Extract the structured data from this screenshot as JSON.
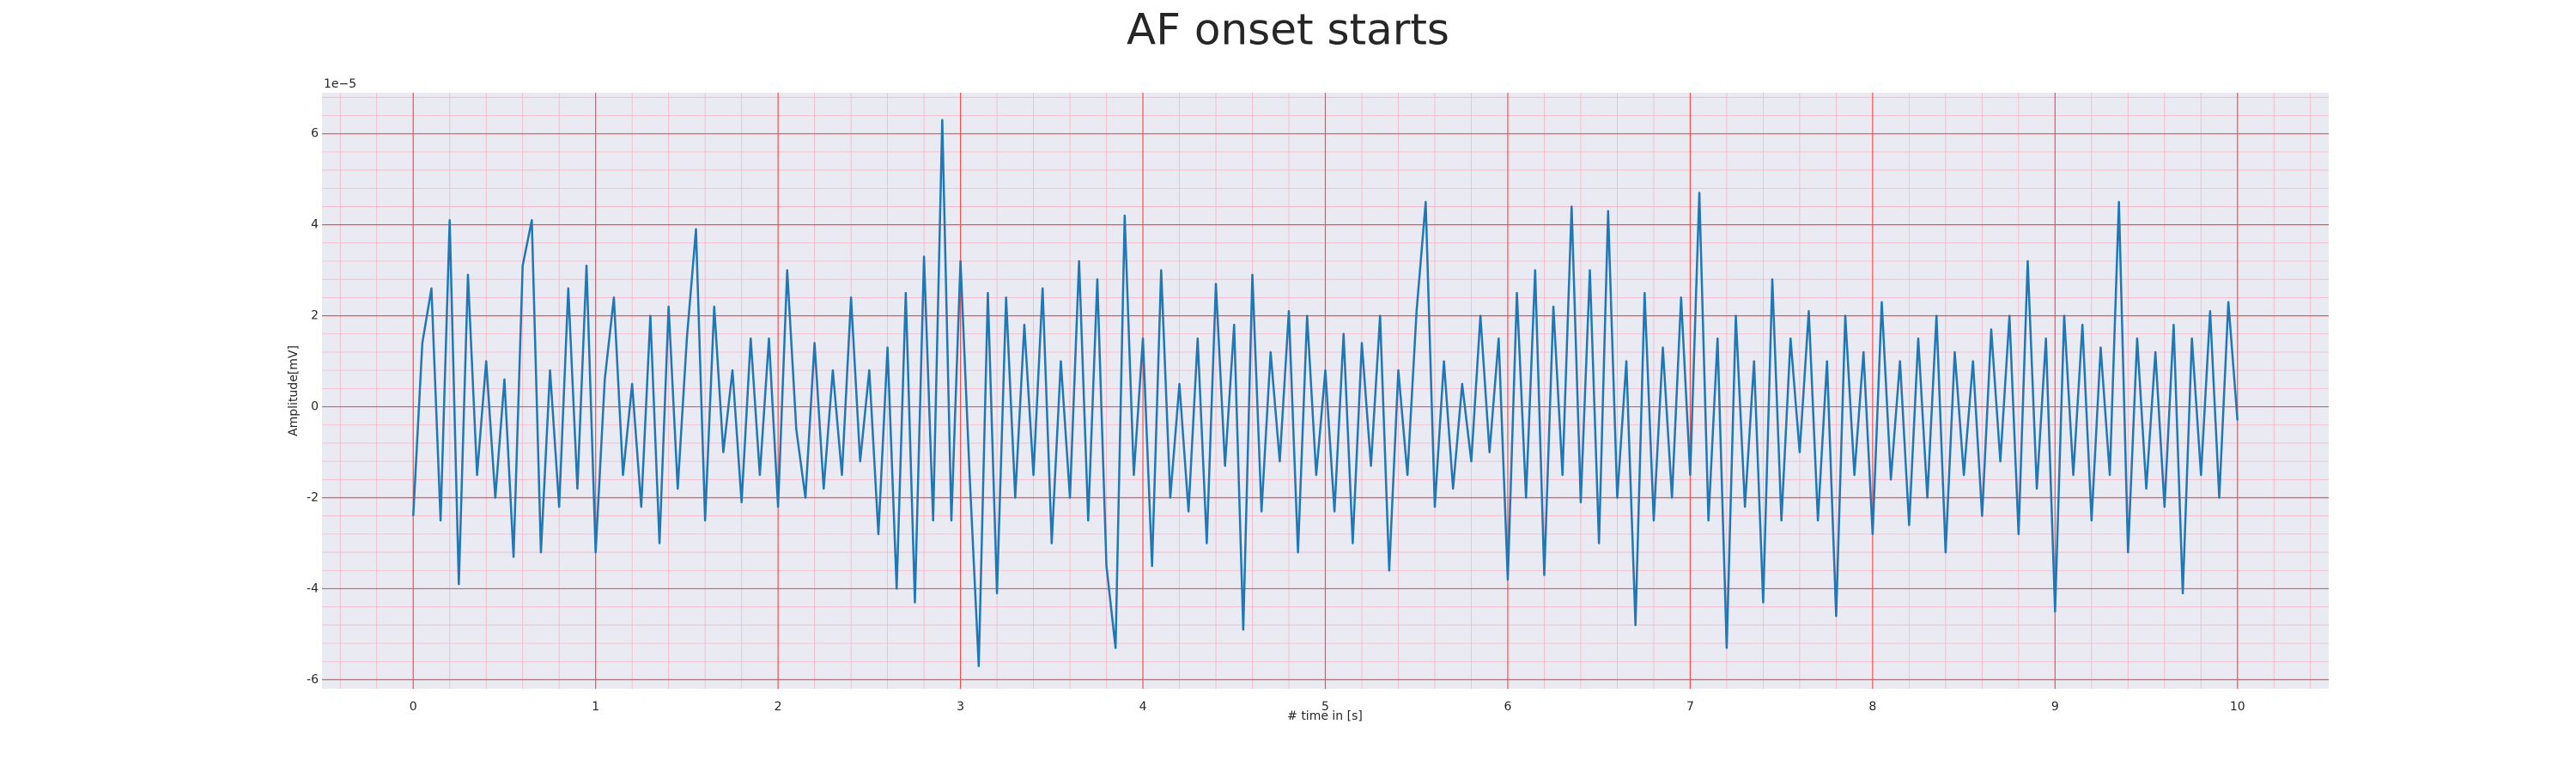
{
  "chart_data": {
    "type": "line",
    "title": "AF onset starts",
    "xlabel": "# time in [s]",
    "ylabel": "Amplitude[mV]",
    "y_offset_label": "1e−5",
    "x": [
      0,
      0.05,
      0.1,
      0.15,
      0.2,
      0.25,
      0.3,
      0.35,
      0.4,
      0.45,
      0.5,
      0.55,
      0.6,
      0.65,
      0.7,
      0.75,
      0.8,
      0.85,
      0.9,
      0.95,
      1,
      1.05,
      1.1,
      1.15,
      1.2,
      1.25,
      1.3,
      1.35,
      1.4,
      1.45,
      1.5,
      1.55,
      1.6,
      1.65,
      1.7,
      1.75,
      1.8,
      1.85,
      1.9,
      1.95,
      2,
      2.05,
      2.1,
      2.15,
      2.2,
      2.25,
      2.3,
      2.35,
      2.4,
      2.45,
      2.5,
      2.55,
      2.6,
      2.65,
      2.7,
      2.75,
      2.8,
      2.85,
      2.9,
      2.95,
      3,
      3.05,
      3.1,
      3.15,
      3.2,
      3.25,
      3.3,
      3.35,
      3.4,
      3.45,
      3.5,
      3.55,
      3.6,
      3.65,
      3.7,
      3.75,
      3.8,
      3.85,
      3.9,
      3.95,
      4,
      4.05,
      4.1,
      4.15,
      4.2,
      4.25,
      4.3,
      4.35,
      4.4,
      4.45,
      4.5,
      4.55,
      4.6,
      4.65,
      4.7,
      4.75,
      4.8,
      4.85,
      4.9,
      4.95,
      5,
      5.05,
      5.1,
      5.15,
      5.2,
      5.25,
      5.3,
      5.35,
      5.4,
      5.45,
      5.5,
      5.55,
      5.6,
      5.65,
      5.7,
      5.75,
      5.8,
      5.85,
      5.9,
      5.95,
      6,
      6.05,
      6.1,
      6.15,
      6.2,
      6.25,
      6.3,
      6.35,
      6.4,
      6.45,
      6.5,
      6.55,
      6.6,
      6.65,
      6.7,
      6.75,
      6.8,
      6.85,
      6.9,
      6.95,
      7,
      7.05,
      7.1,
      7.15,
      7.2,
      7.25,
      7.3,
      7.35,
      7.4,
      7.45,
      7.5,
      7.55,
      7.6,
      7.65,
      7.7,
      7.75,
      7.8,
      7.85,
      7.9,
      7.95,
      8,
      8.05,
      8.1,
      8.15,
      8.2,
      8.25,
      8.3,
      8.35,
      8.4,
      8.45,
      8.5,
      8.55,
      8.6,
      8.65,
      8.7,
      8.75,
      8.8,
      8.85,
      8.9,
      8.95,
      9,
      9.05,
      9.1,
      9.15,
      9.2,
      9.25,
      9.3,
      9.35,
      9.4,
      9.45,
      9.5,
      9.55,
      9.6,
      9.65,
      9.7,
      9.75,
      9.8,
      9.85,
      9.9,
      9.95,
      10
    ],
    "series": [
      {
        "color": "#1f77b4",
        "values": [
          -2.4,
          1.4,
          2.6,
          -2.5,
          4.1,
          -3.9,
          2.9,
          -1.5,
          1.0,
          -2.0,
          0.6,
          -3.3,
          3.1,
          4.1,
          -3.2,
          0.8,
          -2.2,
          2.6,
          -1.8,
          3.1,
          -3.2,
          0.6,
          2.4,
          -1.5,
          0.5,
          -2.2,
          2.0,
          -3.0,
          2.2,
          -1.8,
          1.5,
          3.9,
          -2.5,
          2.2,
          -1.0,
          0.8,
          -2.1,
          1.5,
          -1.5,
          1.5,
          -2.2,
          3.0,
          -0.5,
          -2.0,
          1.4,
          -1.8,
          0.8,
          -1.5,
          2.4,
          -1.2,
          0.8,
          -2.8,
          1.3,
          -4.0,
          2.5,
          -4.3,
          3.3,
          -2.5,
          6.3,
          -2.5,
          3.2,
          -1.5,
          -5.7,
          2.5,
          -4.1,
          2.4,
          -2.0,
          1.8,
          -1.5,
          2.6,
          -3.0,
          1.0,
          -2.0,
          3.2,
          -2.5,
          2.8,
          -3.5,
          -5.3,
          4.2,
          -1.5,
          1.5,
          -3.5,
          3.0,
          -2.0,
          0.5,
          -2.3,
          1.5,
          -3.0,
          2.7,
          -1.3,
          1.8,
          -4.9,
          2.9,
          -2.3,
          1.2,
          -1.2,
          2.1,
          -3.2,
          2.0,
          -1.5,
          0.8,
          -2.3,
          1.6,
          -3.0,
          1.4,
          -1.3,
          2.0,
          -3.6,
          0.8,
          -1.5,
          2.1,
          4.5,
          -2.2,
          1.0,
          -1.8,
          0.5,
          -1.2,
          2.0,
          -1.0,
          1.5,
          -3.8,
          2.5,
          -2.0,
          3.0,
          -3.7,
          2.2,
          -1.5,
          4.4,
          -2.1,
          3.0,
          -3.0,
          4.3,
          -2.0,
          1.0,
          -4.8,
          2.5,
          -2.5,
          1.3,
          -2.0,
          2.4,
          -1.5,
          4.7,
          -2.5,
          1.5,
          -5.3,
          2.0,
          -2.2,
          1.0,
          -4.3,
          2.8,
          -2.5,
          1.5,
          -1.0,
          2.1,
          -2.5,
          1.0,
          -4.6,
          2.0,
          -1.5,
          1.2,
          -2.8,
          2.3,
          -1.6,
          1.0,
          -2.6,
          1.5,
          -2.0,
          2.0,
          -3.2,
          1.2,
          -1.5,
          1.0,
          -2.4,
          1.7,
          -1.2,
          2.0,
          -2.8,
          3.2,
          -1.8,
          1.5,
          -4.5,
          2.0,
          -1.5,
          1.8,
          -2.5,
          1.3,
          -1.5,
          4.5,
          -3.2,
          1.5,
          -1.8,
          1.2,
          -2.2,
          1.8,
          -4.1,
          1.5,
          -1.5,
          2.1,
          -2.0,
          2.3,
          -0.3
        ]
      }
    ],
    "xlim": [
      -0.5,
      10.5
    ],
    "ylim": [
      -6.2,
      6.9
    ],
    "xticks": [
      0,
      1,
      2,
      3,
      4,
      5,
      6,
      7,
      8,
      9,
      10
    ],
    "yticks": [
      -6,
      -4,
      -2,
      0,
      2,
      4,
      6
    ],
    "grid": true,
    "minor_grid": true,
    "grid_color": "#ff4d4d",
    "minor_grid_color": "#f8b4c4",
    "background": "#eaeaf2"
  }
}
